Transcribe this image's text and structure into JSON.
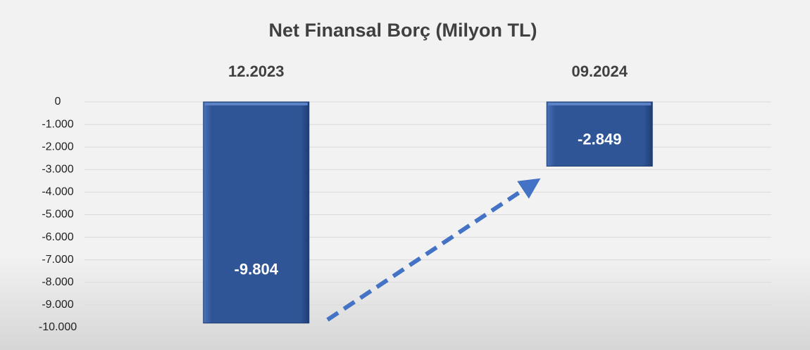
{
  "chart_data": {
    "type": "bar",
    "title": "Net Finansal Borç (Milyon TL)",
    "categories": [
      "12.2023",
      "09.2024"
    ],
    "values": [
      -9804,
      -2849
    ],
    "value_labels": [
      "-9.804",
      "-2.849"
    ],
    "color": "#2f5597",
    "ylim": [
      -10000,
      0
    ],
    "yticks": [
      0,
      {
        "value": -1000,
        "label": "-1.000"
      },
      {
        "value": -2000,
        "label": "-2.000"
      },
      {
        "value": -3000,
        "label": "-3.000"
      },
      {
        "value": -4000,
        "label": "-4.000"
      },
      {
        "value": -5000,
        "label": "-5.000"
      },
      {
        "value": -6000,
        "label": "-6.000"
      },
      {
        "value": -7000,
        "label": "-7.000"
      },
      {
        "value": -8000,
        "label": "-8.000"
      },
      {
        "value": -9000,
        "label": "-9.000"
      },
      {
        "value": -10000,
        "label": "-10.000"
      }
    ],
    "grid": true
  }
}
